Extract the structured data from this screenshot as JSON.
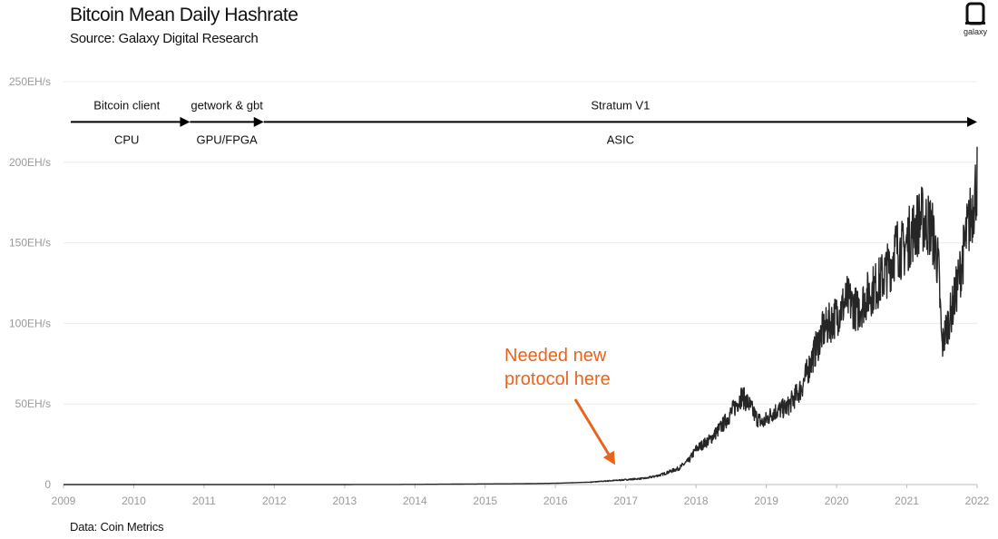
{
  "header": {
    "title": "Bitcoin Mean Daily Hashrate",
    "subtitle": "Source: Galaxy Digital Research",
    "logo_text": "galaxy"
  },
  "footer": {
    "data_source": "Data: Coin Metrics"
  },
  "colors": {
    "line": "#262626",
    "annotation": "#E8641E",
    "grid": "#ececec",
    "axis": "#bdbdbd",
    "tick_text": "#9a9a9a"
  },
  "chart_data": {
    "type": "line",
    "title": "Bitcoin Mean Daily Hashrate",
    "xlabel": "",
    "ylabel": "",
    "xlim": [
      2009,
      2022
    ],
    "ylim": [
      0,
      250
    ],
    "y_ticks": [
      0,
      50,
      100,
      150,
      200,
      250
    ],
    "y_tick_labels": [
      "0",
      "50EH/s",
      "100EH/s",
      "150EH/s",
      "200EH/s",
      "250EH/s"
    ],
    "x_ticks": [
      2009,
      2010,
      2011,
      2012,
      2013,
      2014,
      2015,
      2016,
      2017,
      2018,
      2019,
      2020,
      2021,
      2022
    ],
    "x_tick_labels": [
      "2009",
      "2010",
      "2011",
      "2012",
      "2013",
      "2014",
      "2015",
      "2016",
      "2017",
      "2018",
      "2019",
      "2020",
      "2021",
      "2022"
    ],
    "grid": true,
    "legend": "none",
    "series": [
      {
        "values": [
          [
            2009.0,
            0
          ],
          [
            2013.0,
            0.02
          ],
          [
            2014.0,
            0.1
          ],
          [
            2015.0,
            0.4
          ],
          [
            2015.5,
            0.5
          ],
          [
            2016.0,
            0.8
          ],
          [
            2016.5,
            1.5
          ],
          [
            2017.0,
            3
          ],
          [
            2017.3,
            4
          ],
          [
            2017.5,
            6
          ],
          [
            2017.75,
            10
          ],
          [
            2017.9,
            15
          ],
          [
            2018.0,
            22
          ],
          [
            2018.2,
            28
          ],
          [
            2018.4,
            38
          ],
          [
            2018.55,
            48
          ],
          [
            2018.65,
            55
          ],
          [
            2018.75,
            50
          ],
          [
            2018.85,
            42
          ],
          [
            2018.95,
            38
          ],
          [
            2019.1,
            45
          ],
          [
            2019.3,
            48
          ],
          [
            2019.5,
            60
          ],
          [
            2019.65,
            78
          ],
          [
            2019.8,
            95
          ],
          [
            2019.9,
            100
          ],
          [
            2020.0,
            105
          ],
          [
            2020.15,
            115
          ],
          [
            2020.3,
            108
          ],
          [
            2020.45,
            118
          ],
          [
            2020.6,
            125
          ],
          [
            2020.75,
            135
          ],
          [
            2020.85,
            148
          ],
          [
            2020.95,
            145
          ],
          [
            2021.05,
            155
          ],
          [
            2021.2,
            165
          ],
          [
            2021.35,
            160
          ],
          [
            2021.45,
            135
          ],
          [
            2021.5,
            85
          ],
          [
            2021.55,
            95
          ],
          [
            2021.65,
            110
          ],
          [
            2021.75,
            130
          ],
          [
            2021.85,
            155
          ],
          [
            2021.95,
            175
          ],
          [
            2022.0,
            190
          ]
        ]
      }
    ],
    "eras": [
      {
        "label_top": "Bitcoin client",
        "label_bottom": "CPU",
        "start": 2009.0,
        "end": 2010.8
      },
      {
        "label_top": "getwork & gbt",
        "label_bottom": "GPU/FPGA",
        "start": 2010.8,
        "end": 2011.85
      },
      {
        "label_top": "Stratum V1",
        "label_bottom": "ASIC",
        "start": 2011.85,
        "end": 2022.0
      }
    ],
    "era_arrow_y": 225,
    "annotation": {
      "lines": [
        "Needed new",
        "protocol here"
      ],
      "arrow_to": [
        2016.85,
        2
      ]
    }
  }
}
